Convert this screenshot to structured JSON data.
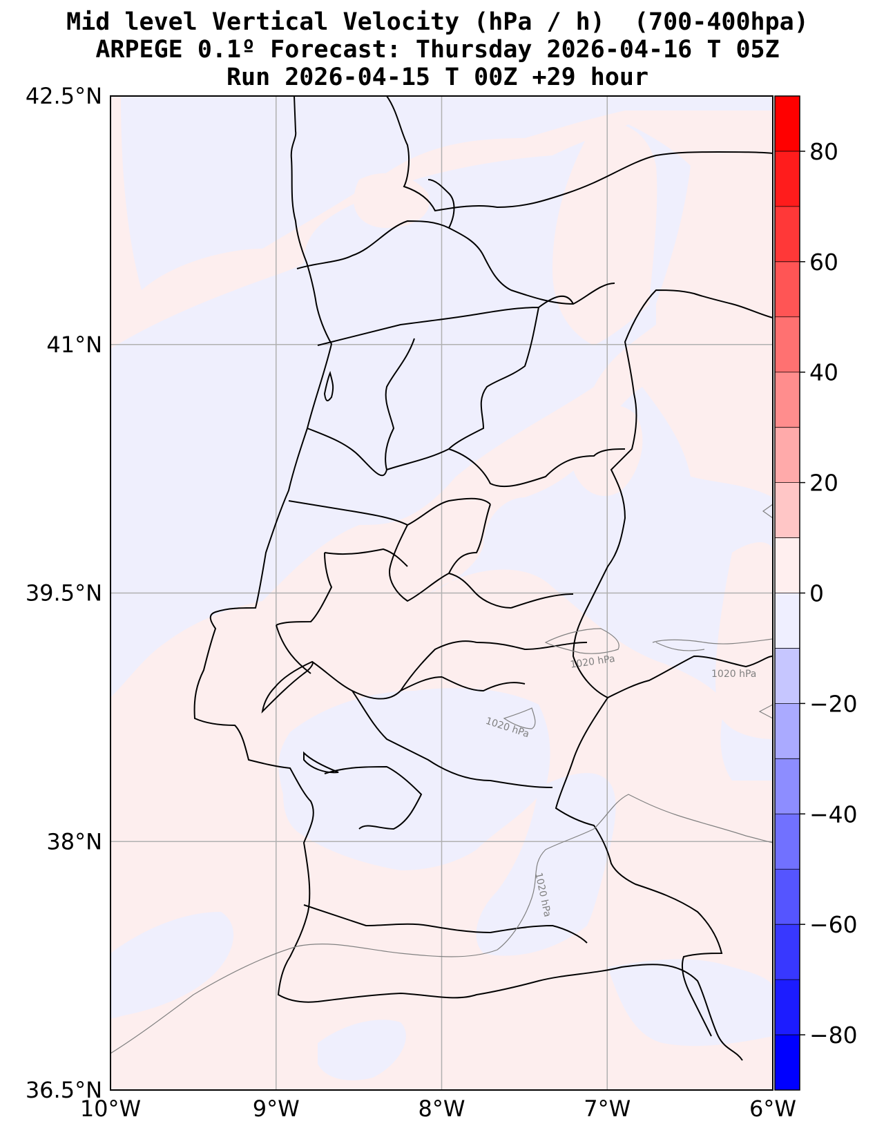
{
  "title": {
    "line1": "Mid level Vertical Velocity (hPa / h)  (700-400hpa)",
    "line2": "ARPEGE 0.1º Forecast: Thursday 2026-04-16 T 05Z",
    "line3": "Run 2026-04-15 T 00Z +29 hour"
  },
  "map": {
    "region": "Portugal",
    "lon_range": [
      -10,
      -6
    ],
    "lat_range": [
      36.5,
      42.5
    ],
    "gridlines": true,
    "lat_ticks": [
      {
        "value": 42.5,
        "label": "42.5°N"
      },
      {
        "value": 41.0,
        "label": "41°N"
      },
      {
        "value": 39.5,
        "label": "39.5°N"
      },
      {
        "value": 38.0,
        "label": "38°N"
      },
      {
        "value": 36.5,
        "label": "36.5°N"
      }
    ],
    "lon_ticks": [
      {
        "value": -10,
        "label": "10°W"
      },
      {
        "value": -9,
        "label": "9°W"
      },
      {
        "value": -8,
        "label": "8°W"
      },
      {
        "value": -7,
        "label": "7°W"
      },
      {
        "value": -6,
        "label": "6°W"
      }
    ],
    "field_colors": {
      "weak_positive": "#fdeeee",
      "weak_negative": "#efeffd"
    },
    "pressure_contour_label": "1020 hPa",
    "pressure_contour_color": "#808080"
  },
  "colorbar": {
    "levels": [
      -90,
      -80,
      -70,
      -60,
      -50,
      -40,
      -30,
      -20,
      -10,
      0,
      10,
      20,
      30,
      40,
      50,
      60,
      70,
      80,
      90
    ],
    "colors": [
      "#0000ff",
      "#1c1cff",
      "#3838ff",
      "#5555ff",
      "#7171ff",
      "#8d8dff",
      "#aaaaff",
      "#c6c6ff",
      "#efefff",
      "#ffefef",
      "#ffc6c6",
      "#ffaaaa",
      "#ff8d8d",
      "#ff7171",
      "#ff5555",
      "#ff3838",
      "#ff1c1c",
      "#ff0000"
    ],
    "ticks": [
      {
        "value": 80,
        "label": "80"
      },
      {
        "value": 60,
        "label": "60"
      },
      {
        "value": 40,
        "label": "40"
      },
      {
        "value": 20,
        "label": "20"
      },
      {
        "value": 0,
        "label": "0"
      },
      {
        "value": -20,
        "label": "−20"
      },
      {
        "value": -40,
        "label": "−40"
      },
      {
        "value": -60,
        "label": "−60"
      },
      {
        "value": -80,
        "label": "−80"
      }
    ]
  }
}
